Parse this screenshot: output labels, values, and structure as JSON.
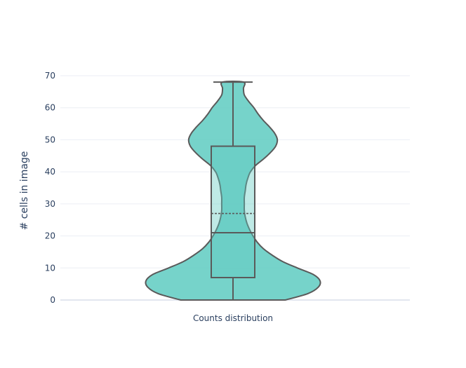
{
  "chart_data": {
    "type": "violin",
    "title": "",
    "xlabel": "",
    "ylabel": "# cells in image",
    "categories": [
      "Counts distribution"
    ],
    "ylim": [
      0,
      70
    ],
    "yticks": [
      0,
      10,
      20,
      30,
      40,
      50,
      60,
      70
    ],
    "grid": true,
    "box": {
      "min": 0,
      "q1": 7,
      "median": 21,
      "mean": 27,
      "q3": 48,
      "max": 68
    },
    "violin_profile": {
      "y": [
        0,
        2,
        4,
        6,
        8,
        10,
        12,
        14,
        16,
        18,
        20,
        22,
        24,
        26,
        28,
        30,
        32,
        34,
        36,
        38,
        40,
        42,
        44,
        46,
        48,
        50,
        52,
        54,
        56,
        58,
        60,
        62,
        64,
        66,
        68
      ],
      "relative_width": [
        0.6,
        0.86,
        0.98,
        1.0,
        0.92,
        0.74,
        0.57,
        0.45,
        0.35,
        0.28,
        0.23,
        0.19,
        0.16,
        0.14,
        0.13,
        0.13,
        0.13,
        0.14,
        0.15,
        0.17,
        0.2,
        0.26,
        0.35,
        0.43,
        0.49,
        0.51,
        0.48,
        0.42,
        0.35,
        0.29,
        0.24,
        0.18,
        0.13,
        0.12,
        0.12
      ]
    },
    "colors": {
      "fill": "#5ecbc1",
      "line": "#5a5a5a",
      "grid": "#ebeef4",
      "text": "#2a3f5f"
    }
  }
}
